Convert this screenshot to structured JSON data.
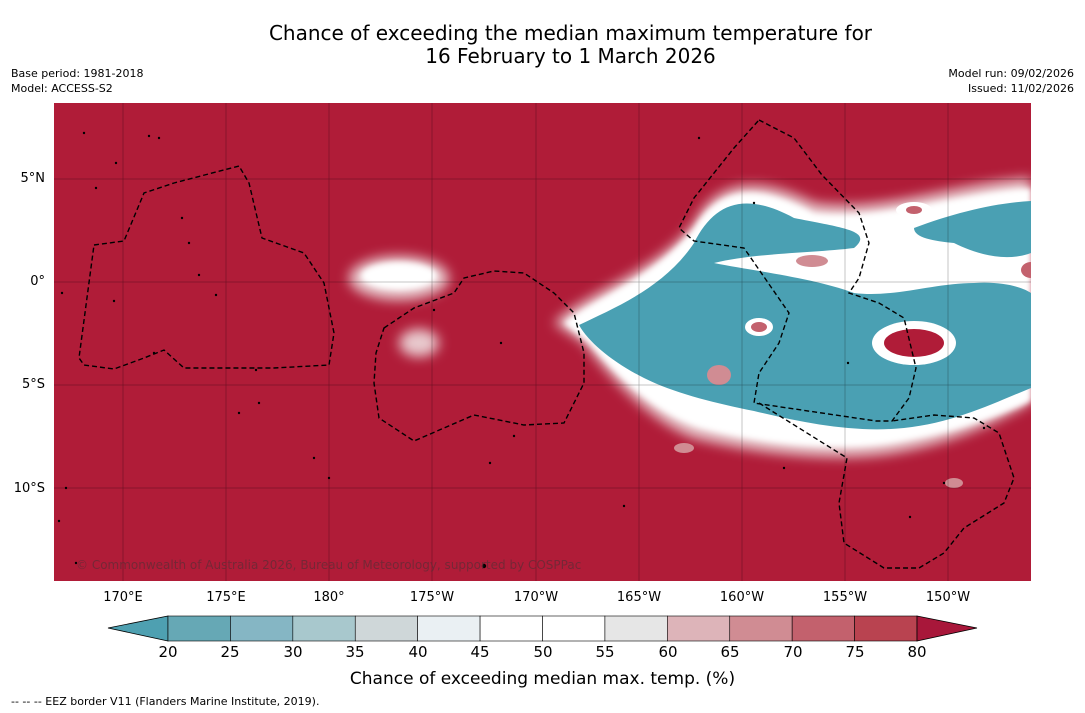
{
  "title": {
    "line1": "Chance of exceeding the median maximum temperature for",
    "line2": "16 February to 1 March 2026"
  },
  "meta_left": {
    "base_period": "Base period: 1981-2018",
    "model": "Model: ACCESS-S2"
  },
  "meta_right": {
    "model_run": "Model run: 09/02/2026",
    "issued": "Issued: 11/02/2026"
  },
  "map": {
    "lat_labels": [
      "5°N",
      "0°",
      "5°S",
      "10°S"
    ],
    "lon_labels": [
      "170°E",
      "175°E",
      "180°",
      "175°W",
      "170°W",
      "165°W",
      "160°W",
      "155°W",
      "150°W"
    ],
    "copyright": "© Commonwealth of Australia 2026, Bureau of Meteorology, supported by COSPPac",
    "colors": {
      "high": "#b01c38",
      "low": "#4aa0b3",
      "land_border": "#000000"
    }
  },
  "colorbar": {
    "ticks": [
      "20",
      "25",
      "30",
      "35",
      "40",
      "45",
      "50",
      "55",
      "60",
      "65",
      "70",
      "75",
      "80"
    ],
    "colors": [
      "#66a8b5",
      "#85b6c4",
      "#a8c8cd",
      "#cfd7d9",
      "#eaf0f3",
      "#ffffff",
      "#ffffff",
      "#e6e6e6",
      "#ddb4b9",
      "#d08c93",
      "#c3616d",
      "#b94350"
    ],
    "under_color": "#4ea0b1",
    "over_color": "#a8173a",
    "label": "Chance of exceeding median max. temp. (%)"
  },
  "footer": "--  --  -- EEZ border V11 (Flanders Marine Institute, 2019)."
}
